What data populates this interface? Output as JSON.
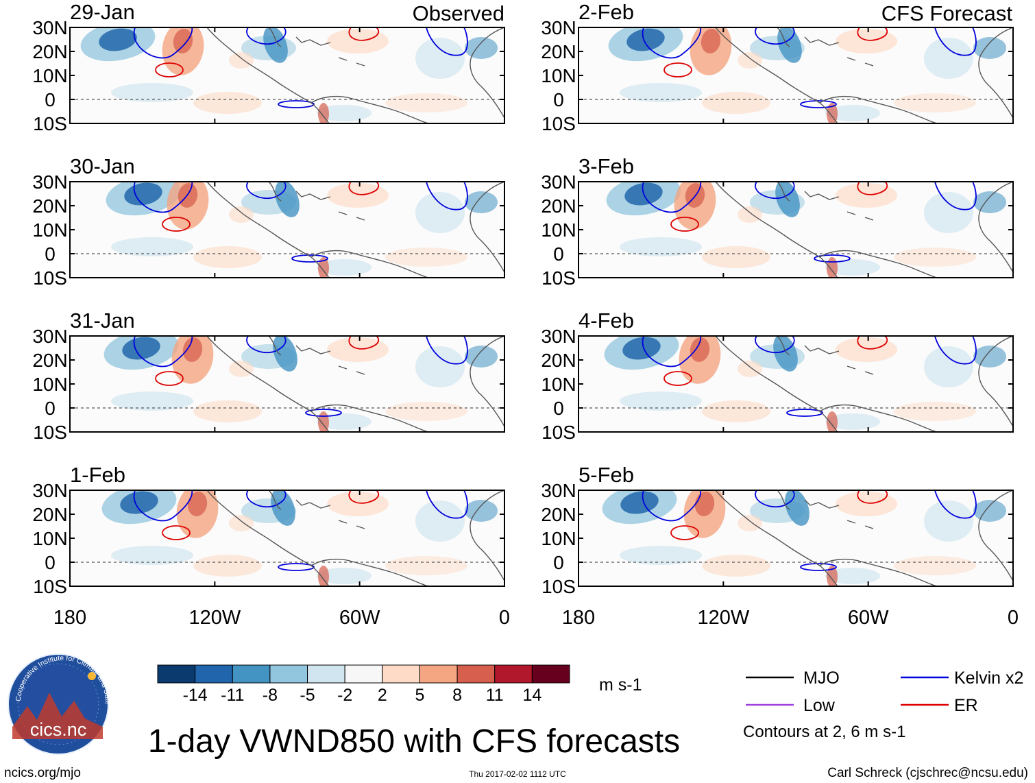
{
  "chart_data": {
    "type": "map-panels",
    "title": "1-day VWND850 with CFS forecasts",
    "observed_label": "Observed",
    "forecast_label": "CFS Forecast",
    "observed_dates": [
      "29-Jan",
      "30-Jan",
      "31-Jan",
      "1-Feb"
    ],
    "forecast_dates": [
      "2-Feb",
      "3-Feb",
      "4-Feb",
      "5-Feb"
    ],
    "lat_ticks": [
      "30N",
      "20N",
      "10N",
      "0",
      "10S"
    ],
    "lat_values": [
      30,
      20,
      10,
      0,
      -10
    ],
    "lon_ticks": [
      "180",
      "120W",
      "60W",
      "0"
    ],
    "lon_values": [
      -180,
      -120,
      -60,
      0
    ],
    "lon_range": [
      -180,
      0
    ],
    "lat_range": [
      -10,
      30
    ],
    "colorbar": {
      "levels": [
        "-14",
        "-11",
        "-8",
        "-5",
        "-2",
        "2",
        "5",
        "8",
        "11",
        "14"
      ],
      "colors": [
        "#0a3a6e",
        "#2166ac",
        "#4393c3",
        "#92c5de",
        "#d1e5f0",
        "#f7f7f7",
        "#fddbc7",
        "#f4a582",
        "#d6604d",
        "#b2182b",
        "#67001f"
      ],
      "units": "m s-1"
    },
    "legend": [
      {
        "label": "MJO",
        "color": "#000000"
      },
      {
        "label": "Kelvin x2",
        "color": "#0000dd"
      },
      {
        "label": "Low",
        "color": "#a040e0"
      },
      {
        "label": "ER",
        "color": "#dd0000"
      }
    ],
    "contour_note": "Contours at 2, 6 m s-1"
  },
  "footer": {
    "url": "ncics.org/mjo",
    "timestamp": "Thu 2017-02-02 1112 UTC",
    "credit": "Carl Schreck (cjschrec@ncsu.edu)"
  },
  "logo": {
    "text": "cics.nc",
    "ring_text": "Cooperative Institute for Climate and Satellites"
  }
}
